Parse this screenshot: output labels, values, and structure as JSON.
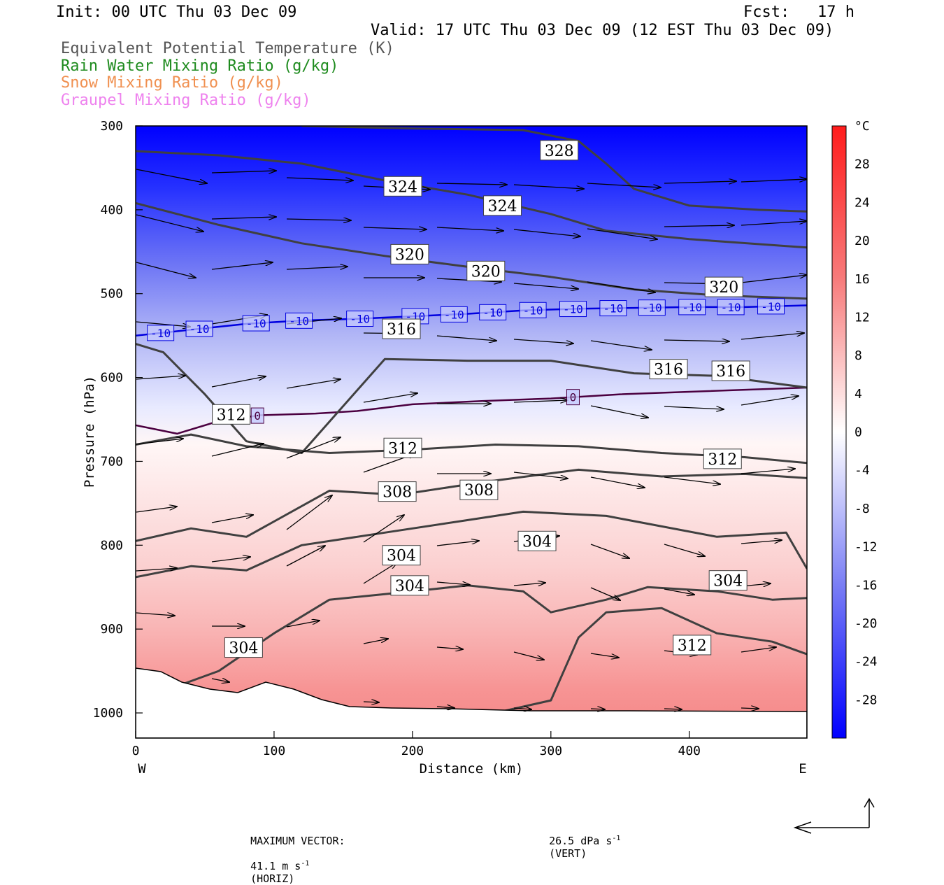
{
  "header": {
    "init": "Init: 00 UTC Thu 03 Dec 09",
    "fcst": "Fcst:   17 h",
    "valid": "Valid: 17 UTC Thu 03 Dec 09 (12 EST Thu 03 Dec 09)"
  },
  "legend": [
    {
      "label": "Equivalent Potential Temperature (K)",
      "color": "#555555"
    },
    {
      "label": "Rain Water Mixing Ratio (g/kg)",
      "color": "#1e8b1e"
    },
    {
      "label": "Snow Mixing Ratio (g/kg)",
      "color": "#f09050"
    },
    {
      "label": "Graupel Mixing Ratio (g/kg)",
      "color": "#ee82ee"
    }
  ],
  "footer": {
    "max_vector": "MAXIMUM VECTOR:",
    "horiz_value": "41.1 m s",
    "horiz_unit": "(HORIZ)",
    "vert_value": "26.5 dPa s",
    "vert_unit": "(VERT)",
    "exp": "-1"
  },
  "chart_data": {
    "type": "heatmap",
    "xlabel": "Distance (km)",
    "ylabel": "Pressure (hPa)",
    "xlim": [
      0,
      485
    ],
    "ylim": [
      1030,
      300
    ],
    "x_ticks": [
      0,
      100,
      200,
      300,
      400
    ],
    "y_ticks": [
      300,
      400,
      500,
      600,
      700,
      800,
      900,
      1000
    ],
    "x_end_labels": {
      "left": "W",
      "right": "E"
    },
    "colorbar": {
      "unit": "°C",
      "range": [
        -32,
        32
      ],
      "tick_labels": [
        28,
        24,
        20,
        16,
        12,
        8,
        4,
        0,
        -4,
        -8,
        -12,
        -16,
        -20,
        -24,
        -28
      ],
      "cold_color": "#0000ff",
      "neutral_color": "#ffffff",
      "warm_color": "#ff1c1c"
    },
    "isotherms": [
      {
        "label": "-10",
        "color": "#0000e0",
        "points": [
          [
            0,
            550
          ],
          [
            40,
            543
          ],
          [
            80,
            536
          ],
          [
            120,
            532
          ],
          [
            160,
            530
          ],
          [
            200,
            527
          ],
          [
            240,
            524
          ],
          [
            280,
            520
          ],
          [
            320,
            518
          ],
          [
            360,
            517
          ],
          [
            400,
            516
          ],
          [
            440,
            516
          ],
          [
            485,
            514
          ]
        ],
        "label_x": [
          18,
          46,
          87,
          118,
          162,
          202,
          230,
          258,
          287,
          316,
          345,
          373,
          402,
          430,
          459
        ]
      },
      {
        "label": "0",
        "color": "#4b0040",
        "points": [
          [
            0,
            657
          ],
          [
            30,
            667
          ],
          [
            60,
            652
          ],
          [
            90,
            645
          ],
          [
            130,
            643
          ],
          [
            160,
            640
          ],
          [
            200,
            632
          ],
          [
            250,
            628
          ],
          [
            300,
            625
          ],
          [
            350,
            620
          ],
          [
            400,
            617
          ],
          [
            485,
            612
          ]
        ],
        "label_x": [
          88,
          316
        ]
      }
    ],
    "theta_e_contours": [
      {
        "label": "328",
        "points": [
          [
            120,
            300
          ],
          [
            200,
            303
          ],
          [
            280,
            305
          ],
          [
            320,
            318
          ],
          [
            340,
            345
          ],
          [
            360,
            375
          ],
          [
            400,
            395
          ],
          [
            450,
            400
          ],
          [
            485,
            402
          ]
        ],
        "labels": [
          [
            306,
            329
          ]
        ]
      },
      {
        "label": "324",
        "points": [
          [
            0,
            330
          ],
          [
            60,
            335
          ],
          [
            120,
            345
          ],
          [
            180,
            365
          ],
          [
            240,
            382
          ],
          [
            300,
            405
          ],
          [
            340,
            425
          ],
          [
            400,
            435
          ],
          [
            485,
            445
          ]
        ],
        "labels": [
          [
            193,
            372
          ],
          [
            265,
            395
          ]
        ]
      },
      {
        "label": "320",
        "points": [
          [
            0,
            392
          ],
          [
            60,
            418
          ],
          [
            120,
            440
          ],
          [
            180,
            455
          ],
          [
            240,
            468
          ],
          [
            300,
            480
          ],
          [
            360,
            495
          ],
          [
            420,
            502
          ],
          [
            485,
            506
          ]
        ],
        "labels": [
          [
            198,
            453
          ],
          [
            253,
            473
          ],
          [
            425,
            492
          ]
        ]
      },
      {
        "label": "316",
        "points": [
          [
            0,
            560
          ],
          [
            20,
            570
          ],
          [
            50,
            620
          ],
          [
            80,
            676
          ],
          [
            120,
            690
          ],
          [
            180,
            578
          ],
          [
            240,
            580
          ],
          [
            300,
            580
          ],
          [
            360,
            595
          ],
          [
            420,
            598
          ],
          [
            485,
            612
          ]
        ],
        "labels": [
          [
            192,
            542
          ],
          [
            385,
            590
          ],
          [
            430,
            592
          ]
        ]
      },
      {
        "label": "312",
        "points": [
          [
            0,
            680
          ],
          [
            40,
            668
          ],
          [
            80,
            682
          ],
          [
            140,
            690
          ],
          [
            200,
            686
          ],
          [
            260,
            680
          ],
          [
            320,
            682
          ],
          [
            380,
            690
          ],
          [
            440,
            695
          ],
          [
            485,
            702
          ]
        ],
        "labels": [
          [
            69,
            644
          ],
          [
            193,
            684
          ],
          [
            424,
            697
          ]
        ]
      },
      {
        "label": "308",
        "points": [
          [
            0,
            795
          ],
          [
            40,
            780
          ],
          [
            80,
            790
          ],
          [
            140,
            735
          ],
          [
            190,
            740
          ],
          [
            250,
            725
          ],
          [
            320,
            710
          ],
          [
            380,
            718
          ],
          [
            440,
            715
          ],
          [
            485,
            720
          ]
        ],
        "labels": [
          [
            189,
            736
          ],
          [
            248,
            734
          ]
        ]
      },
      {
        "label": "304",
        "points": [
          [
            0,
            838
          ],
          [
            40,
            825
          ],
          [
            80,
            830
          ],
          [
            120,
            800
          ],
          [
            180,
            785
          ],
          [
            240,
            770
          ],
          [
            280,
            760
          ],
          [
            340,
            765
          ],
          [
            420,
            790
          ],
          [
            470,
            785
          ],
          [
            485,
            828
          ]
        ],
        "labels": [
          [
            192,
            812
          ],
          [
            290,
            795
          ],
          [
            428,
            842
          ]
        ]
      },
      {
        "label": "304",
        "points": [
          [
            35,
            965
          ],
          [
            60,
            950
          ],
          [
            100,
            905
          ],
          [
            140,
            865
          ],
          [
            200,
            855
          ],
          [
            240,
            848
          ],
          [
            280,
            855
          ],
          [
            300,
            880
          ],
          [
            340,
            865
          ],
          [
            370,
            850
          ],
          [
            420,
            855
          ],
          [
            460,
            865
          ],
          [
            485,
            863
          ]
        ],
        "labels": [
          [
            198,
            848
          ],
          [
            78,
            922
          ]
        ]
      },
      {
        "label": "312",
        "points": [
          [
            260,
            1000
          ],
          [
            300,
            985
          ],
          [
            320,
            910
          ],
          [
            340,
            880
          ],
          [
            380,
            875
          ],
          [
            420,
            905
          ],
          [
            460,
            915
          ],
          [
            485,
            930
          ]
        ],
        "labels": [
          [
            402,
            919
          ]
        ]
      }
    ]
  }
}
